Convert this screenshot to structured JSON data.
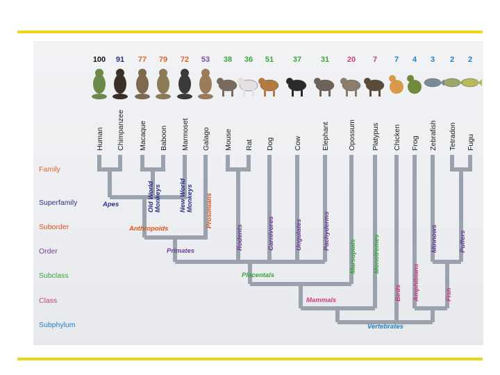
{
  "colors": {
    "rule": "#f2d31b",
    "branch": "#9aa3ad",
    "family": "#e0622a",
    "superfamily": "#2e2f86",
    "suborder": "#d9531e",
    "order": "#6e3d93",
    "subclass": "#3aa53a",
    "class": "#c73d7f",
    "subphylum": "#1f7fbf"
  },
  "species": [
    {
      "name": "Human",
      "number": "100",
      "color": "#111111",
      "icon": "human-figure-icon"
    },
    {
      "name": "Chimpanzee",
      "number": "91",
      "color": "#2e2f86",
      "icon": "chimpanzee-icon"
    },
    {
      "name": "Macaque",
      "number": "77",
      "color": "#e0622a",
      "icon": "macaque-icon"
    },
    {
      "name": "Baboon",
      "number": "79",
      "color": "#e0622a",
      "icon": "baboon-icon"
    },
    {
      "name": "Marmoset",
      "number": "72",
      "color": "#e0622a",
      "icon": "marmoset-icon"
    },
    {
      "name": "Galago",
      "number": "53",
      "color": "#7a4ea0",
      "icon": "galago-icon"
    },
    {
      "name": "Mouse",
      "number": "38",
      "color": "#3aa53a",
      "icon": "mouse-icon"
    },
    {
      "name": "Rat",
      "number": "36",
      "color": "#3aa53a",
      "icon": "rat-icon"
    },
    {
      "name": "Dog",
      "number": "51",
      "color": "#3aa53a",
      "icon": "dog-icon"
    },
    {
      "name": "Cow",
      "number": "37",
      "color": "#3aa53a",
      "icon": "cow-icon"
    },
    {
      "name": "Elephant",
      "number": "31",
      "color": "#3aa53a",
      "icon": "elephant-icon"
    },
    {
      "name": "Opossum",
      "number": "20",
      "color": "#c73d7f",
      "icon": "opossum-icon"
    },
    {
      "name": "Platypus",
      "number": "7",
      "color": "#c73d7f",
      "icon": "platypus-icon"
    },
    {
      "name": "Chicken",
      "number": "7",
      "color": "#1f7fbf",
      "icon": "chicken-icon"
    },
    {
      "name": "Frog",
      "number": "4",
      "color": "#1f7fbf",
      "icon": "frog-icon"
    },
    {
      "name": "Zebrafish",
      "number": "3",
      "color": "#1f7fbf",
      "icon": "zebrafish-icon"
    },
    {
      "name": "Tetradon",
      "number": "2",
      "color": "#1f7fbf",
      "icon": "tetradon-icon"
    },
    {
      "name": "Fugu",
      "number": "2",
      "color": "#1f7fbf",
      "icon": "fugu-icon"
    }
  ],
  "ranks": {
    "family": "Family",
    "superfamily": "Superfamily",
    "suborder": "Suborder",
    "order": "Order",
    "subclass": "Subclass",
    "class": "Class",
    "subphylum": "Subphylum"
  },
  "groups": {
    "apes": "Apes",
    "old_world_1": "Old World",
    "old_world_2": "Monkeys",
    "new_world_1": "New World",
    "new_world_2": "Monkeys",
    "prosimians": "Prosimians",
    "anthropoids": "Anthropoids",
    "rodents": "Rodents",
    "carnivores": "Carnivores",
    "ungulates": "Ungulates",
    "pachyderms": "Pachyderms",
    "primates": "Primates",
    "marsupials": "Marsupials",
    "monotremes": "Monotremes",
    "placentals": "Placentals",
    "birds": "Birds",
    "amphibians": "Amphibians",
    "minnows": "Minnows",
    "puffers": "Puffers",
    "mammals": "Mammals",
    "fish": "Fish",
    "vertebrates": "Vertebrates"
  }
}
